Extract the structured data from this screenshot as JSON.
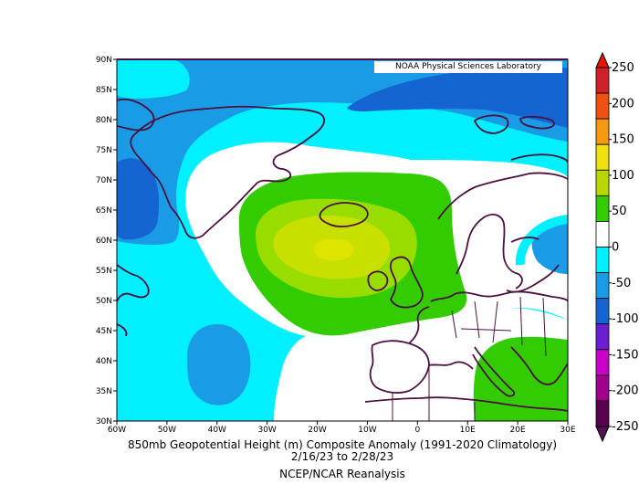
{
  "credit": "NOAA Physical Sciences Laboratory",
  "caption": {
    "line1": "850mb Geopotential Height (m) Composite Anomaly (1991-2020 Climatology)",
    "line2": "2/16/23   to 2/28/23",
    "line3": "NCEP/NCAR Reanalysis"
  },
  "map": {
    "lon_range": [
      -60,
      30
    ],
    "lat_range": [
      30,
      90
    ],
    "lon_ticks": [
      "60W",
      "50W",
      "40W",
      "30W",
      "20W",
      "10W",
      "0",
      "10E",
      "20E",
      "30E"
    ],
    "lat_ticks": [
      "90N",
      "85N",
      "80N",
      "75N",
      "70N",
      "65N",
      "60N",
      "55N",
      "50N",
      "45N",
      "40N",
      "35N",
      "30N"
    ]
  },
  "colorbar": {
    "labels": [
      "250",
      "200",
      "150",
      "100",
      "50",
      "0",
      "-50",
      "-100",
      "-150",
      "-200",
      "-250"
    ],
    "colors": [
      "#d0202a",
      "#f05010",
      "#f59a10",
      "#f0e010",
      "#b8d800",
      "#33cc00",
      "#ffffff",
      "#00f0ff",
      "#1a9be6",
      "#1464d2",
      "#6a1ed2",
      "#c800c8",
      "#a0008c",
      "#5a0050"
    ],
    "top_color": "#e8140a",
    "bottom_color": "#501450"
  },
  "legend": [
    {
      "level": "-100",
      "color": "#1464d2"
    },
    {
      "level": "-50",
      "color": "#1a9be6"
    },
    {
      "level": "-25",
      "color": "#00f0ff"
    },
    {
      "level": "0",
      "color": "#ffffff"
    },
    {
      "level": "25",
      "color": "#33cc00"
    },
    {
      "level": "50",
      "color": "#99dd00"
    },
    {
      "level": "75",
      "color": "#c8e000"
    }
  ]
}
